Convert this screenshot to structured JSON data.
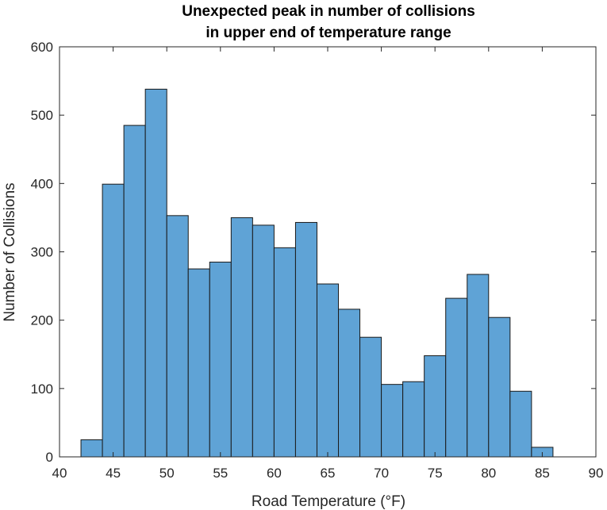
{
  "chart_data": {
    "type": "bar",
    "subtype": "histogram",
    "title_lines": [
      "Unexpected peak in number of collisions",
      "in upper end of temperature range"
    ],
    "xlabel": "Road Temperature (°F)",
    "ylabel": "Number of Collisions",
    "xlim": [
      40,
      90
    ],
    "ylim": [
      0,
      600
    ],
    "xticks": [
      40,
      45,
      50,
      55,
      60,
      65,
      70,
      75,
      80,
      85,
      90
    ],
    "yticks": [
      0,
      100,
      200,
      300,
      400,
      500,
      600
    ],
    "bin_edges": [
      42,
      44,
      46,
      48,
      50,
      52,
      54,
      56,
      58,
      60,
      62,
      64,
      66,
      68,
      70,
      72,
      74,
      76,
      78,
      80,
      82,
      84,
      86
    ],
    "values": [
      25,
      399,
      485,
      538,
      353,
      275,
      285,
      350,
      339,
      306,
      343,
      253,
      216,
      175,
      106,
      110,
      148,
      232,
      267,
      204,
      96,
      14
    ],
    "grid": false,
    "colors": {
      "bar_fill": "#5FA3D6",
      "bar_edge": "#1a1a1a",
      "axis": "#262626"
    }
  }
}
